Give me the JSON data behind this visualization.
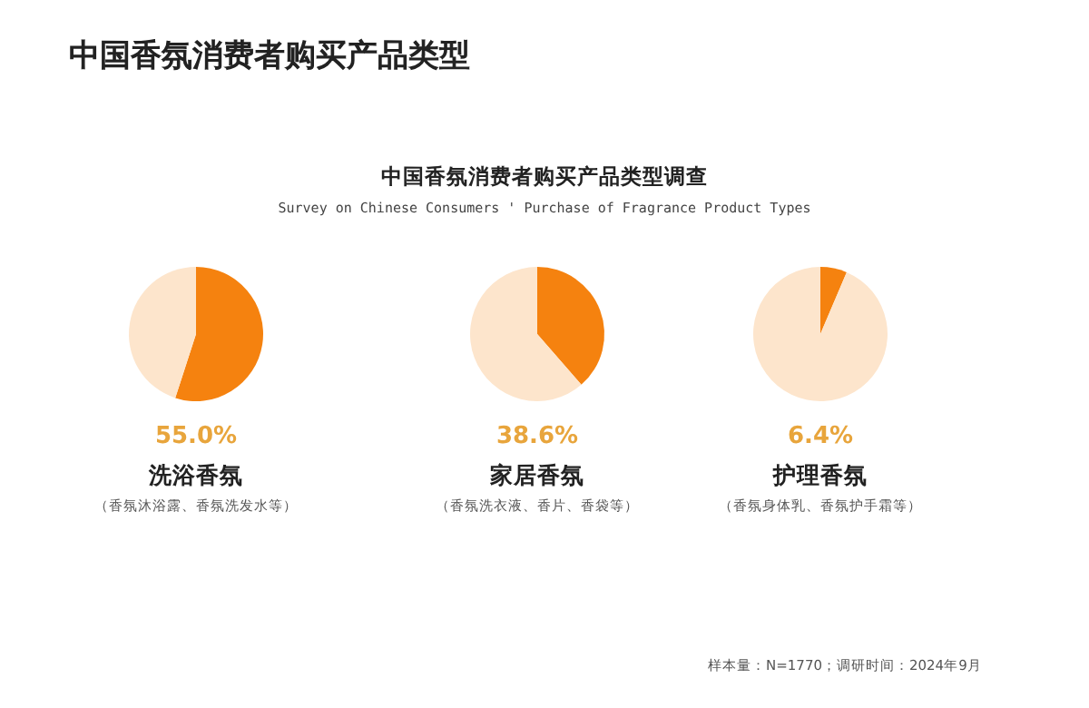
{
  "chart_data": [
    {
      "type": "other",
      "title": "中国香氛消费者购买产品类型",
      "subtitle": "中国香氛消费者购买产品类型调查",
      "annotations": [
        "Survey on Chinese Consumers ' Purchase of Fragrance Product Types",
        "样本量：N=1770；调研时间：2024年9月"
      ]
    },
    {
      "type": "pie",
      "title": "洗浴香氛",
      "categories": [
        null,
        null
      ],
      "values": [
        55.0,
        45.0
      ],
      "colors": [
        "#f5820f",
        "#fde5cc"
      ],
      "annotations": [
        "55.0%",
        "（香氛沐浴露、香氛洗发水等）"
      ]
    },
    {
      "type": "pie",
      "title": "家居香氛",
      "categories": [
        null,
        null
      ],
      "values": [
        38.6,
        61.4
      ],
      "colors": [
        "#f5820f",
        "#fde5cc"
      ],
      "annotations": [
        "38.6%",
        "（香氛洗衣液、香片、香袋等）"
      ]
    },
    {
      "type": "pie",
      "title": "护理香氛",
      "categories": [
        null,
        null
      ],
      "values": [
        6.4,
        93.6
      ],
      "colors": [
        "#f5820f",
        "#fde5cc"
      ],
      "annotations": [
        "6.4%",
        "（香氛身体乳、香氛护手霜等）"
      ]
    }
  ]
}
